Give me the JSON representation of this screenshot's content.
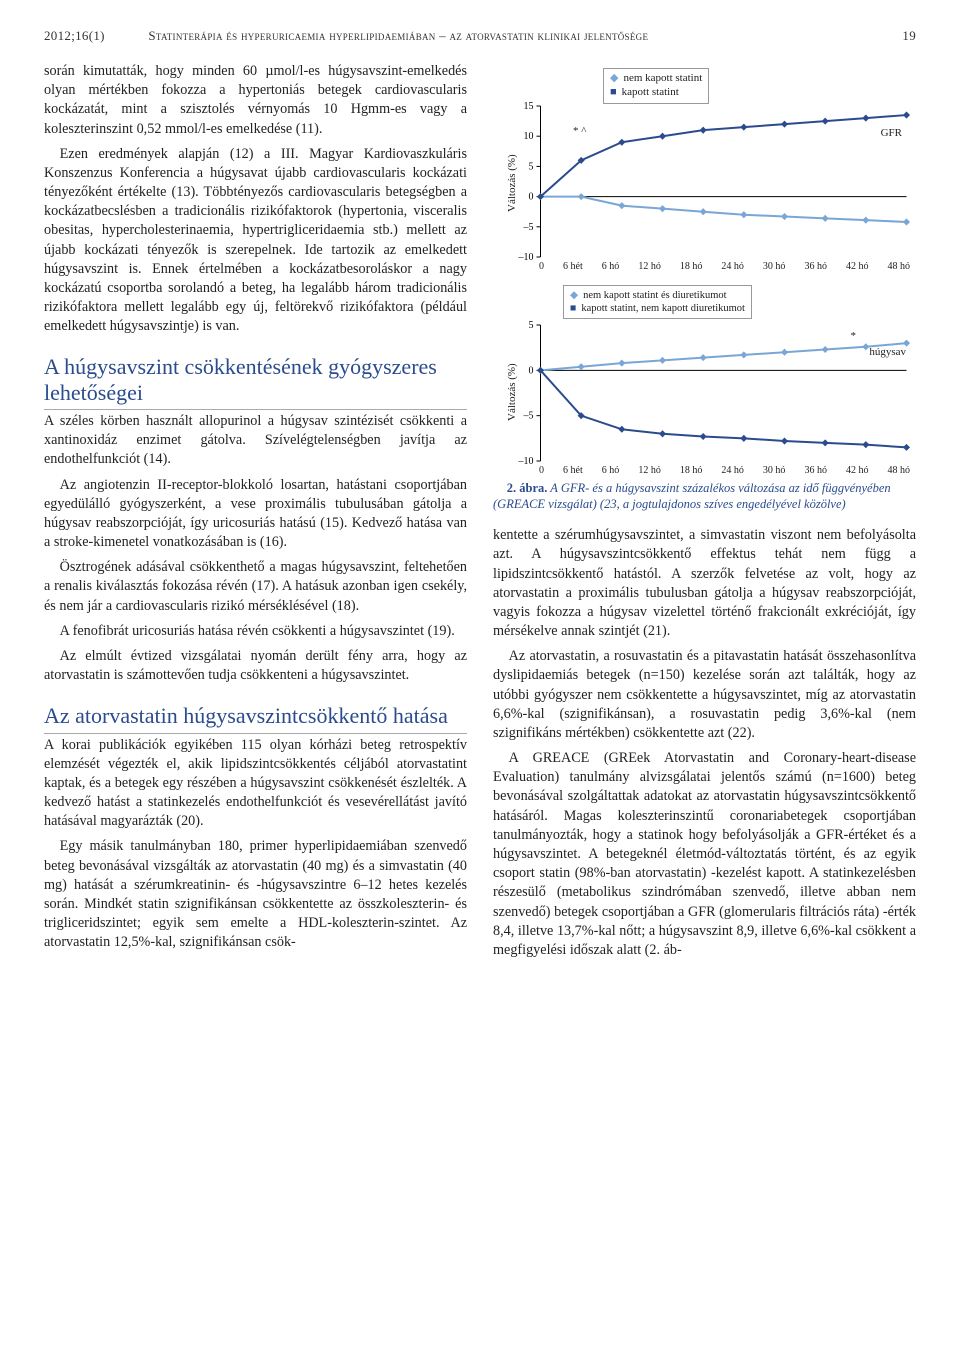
{
  "header": {
    "issue": "2012;16(1)",
    "running_title": "Statinterápia és hyperuricaemia hyperlipidaemiában – az atorvastatin klinikai jelentősége",
    "page_number": "19"
  },
  "body": {
    "para1": "során kimutatták, hogy minden 60 µmol/l-es húgysav­szint-emelkedés olyan mértékben fokozza a hypertoniás betegek cardiovascularis kockázatát, mint a szisztolés vérnyomás 10 Hgmm-es vagy a koleszterinszint 0,52 mmol/l-es emelkedése (11).",
    "para2": "Ezen eredmények alapján (12) a III. Magyar Kardiovaszkuláris Konszenzus Konferencia a húgysavat újabb cardio­vascularis kockázati tényezőként értékelte (13). Többtényezős cardiovascularis betegségben a kockázatbecslésben a tradicionális rizikófaktorok (hypertonia, visceralis obesitas, hypercholesterinaemia, hypertrigliceridaemia stb.) mellett az újabb kockázati tényezők is szerepelnek. Ide tartozik az emelkedett húgysavszint is. Ennek értelmében a kockázatbesoroláskor a nagy kockázatú csoportba sorolandó a beteg, ha legalább három tradicionális rizikófaktora mellett legalább egy új, feltörekvő rizikófaktora (például emelkedett húgysavszintje) is van.",
    "h2a": "A húgysavszint csökkentésének gyógyszeres lehetőségei",
    "para3": "A széles körben használt allopurinol a húgysav szintézisét csökkenti a xantinoxidáz enzimet gátolva. Szívelégtelenségben javítja az endothelfunkciót (14).",
    "para4": "Az angiotenzin II-receptor-blokkoló losartan, hatástani csoportjában egyedülálló gyógyszerként, a vese proximális tubulusában gátolja a húgysav reabszorpcióját, így uricosuriás hatású (15). Kedvező hatása van a stroke-kimenetel vonatkozásában is (16).",
    "para5": "Ösztrogének adásával csökkenthető a magas húgysav­szint, feltehetően a renalis kiválasztás fokozása révén (17). A hatásuk azonban igen csekély, és nem jár a cardiovascularis rizikó mérséklésével (18).",
    "para6": "A fenofibrát uricosuriás hatása révén csökkenti a húgysavszintet (19).",
    "para7": "Az elmúlt évtized vizsgálatai nyomán derült fény arra, hogy az atorvastatin is számottevően tudja csökkenteni a húgysavszintet.",
    "h2b": "Az atorvastatin húgysavszint­csökkentő hatása",
    "para8": "A korai publikációk egyikében 115 olyan kórházi beteg retrospektív elemzését végezték el, akik lipidszintcsökkentés céljából atorvastatint kaptak, és a betegek egy részében a húgysavszint csökkenését észlelték. A kedvező hatást a statinkezelés endothelfunkciót és vesevérellátást javító hatásával magyarázták (20).",
    "para9": "Egy másik tanulmányban 180, primer hyperlipidaemiában szenvedő beteg bevonásával vizsgálták az atorvastatin (40 mg) és a simvastatin (40 mg) hatását a szérumkreatinin- és -húgysavszintre 6–12 hetes kezelés során. Mindkét statin szignifikánsan csökkentette az összkoleszterin- és trigliceridszintet; egyik sem emelte a HDL-koleszterin-szintet. Az atorvastatin 12,5%-kal, szignifikánsan csök-",
    "para10": "kentette a szérumhúgysavszintet, a simvastatin viszont nem befolyásolta azt. A húgysavszintcsökkentő effektus tehát nem függ a lipidszintcsökkentő hatástól. A szerzők felvetése az volt, hogy az atorvastatin a proximális tubulusban gátolja a húgysav reabszorpcióját, vagyis fokozza a húgysav vizelettel történő frakcionált exkrécióját, így mérsékelve annak szintjét (21).",
    "para11": "Az atorvastatin, a rosuvastatin és a pitavastatin hatását összehasonlítva dyslipidaemiás betegek (n=150) kezelése során azt találták, hogy az utóbbi gyógyszer nem csökkentette a húgysavszintet, míg az atorvastatin 6,6%-kal (szignifikánsan), a rosuvastatin pedig 3,6%-kal (nem szignifikáns mértékben) csökkentette azt (22).",
    "para12": "A GREACE (GREek Atorvastatin and Coronary-heart-disease Evaluation) tanulmány alvizsgálatai jelentős számú (n=1600) beteg bevonásával szolgáltattak adatokat az atorvastatin húgysavszintcsökkentő hatásáról. Magas koleszterinszintű coronariabetegek csoportjában tanulmányozták, hogy a statinok hogy befolyásolják a GFR-értéket és a húgysavszintet. A betegeknél életmód-változtatás történt, és az egyik csoport statin (98%-ban atorvastatin) -kezelést kapott. A statinkezelésben részesülő (metabolikus szindrómában szenvedő, illetve abban nem szenvedő) betegek csoportjában a GFR (glomerularis filtrációs ráta) -érték 8,4, illetve 13,7%-kal nőtt; a húgysavszint 8,9, illetve 6,6%-kal csökkent a megfigyelési időszak alatt (2. áb-"
  },
  "figure": {
    "caption_lead": "2. ábra.",
    "caption": "A GFR- és a húgysavszint százalékos változása az idő függvényében (GREACE vizsgálat) (23, a jogtulajdonos szíves engedélyével közölve)",
    "y_axis_label": "Változás (%)",
    "top_chart": {
      "legend": [
        "nem kapott statint",
        "kapott statint"
      ],
      "series_colors": [
        "#7aa6d6",
        "#2a4b8d"
      ],
      "ylim": [
        -10,
        15
      ],
      "ytick_step": 5,
      "yticks": [
        "15",
        "10",
        "5",
        "0",
        "–5",
        "–10"
      ],
      "annotation_left": "* ^",
      "annotation_right": "GFR",
      "xticks": [
        "0",
        "6 hét",
        "6 hó",
        "12 hó",
        "18 hó",
        "24 hó",
        "30 hó",
        "36 hó",
        "42 hó",
        "48 hó"
      ],
      "statin": [
        0,
        6,
        9,
        10,
        11,
        11.5,
        12,
        12.5,
        13,
        13.5
      ],
      "no_statin": [
        0,
        0,
        -1.5,
        -2,
        -2.5,
        -3,
        -3.3,
        -3.6,
        -3.9,
        -4.2
      ],
      "line_width": 2,
      "marker": "diamond"
    },
    "bottom_chart": {
      "legend": [
        "nem kapott statint és diuretikumot",
        "kapott statint, nem kapott diuretikumot"
      ],
      "series_colors": [
        "#7aa6d6",
        "#2a4b8d"
      ],
      "ylim": [
        -10,
        5
      ],
      "ytick_step": 5,
      "yticks": [
        "5",
        "0",
        "–5",
        "–10"
      ],
      "annotation_right_top": "*",
      "annotation_right": "húgysav",
      "xticks": [
        "0",
        "6 hét",
        "6 hó",
        "12 hó",
        "18 hó",
        "24 hó",
        "30 hó",
        "36 hó",
        "42 hó",
        "48 hó"
      ],
      "statin": [
        0,
        -5,
        -6.5,
        -7,
        -7.3,
        -7.5,
        -7.8,
        -8,
        -8.2,
        -8.5
      ],
      "no_statin": [
        0,
        0.4,
        0.8,
        1.1,
        1.4,
        1.7,
        2,
        2.3,
        2.6,
        3
      ],
      "line_width": 2,
      "marker": "square"
    },
    "background_color": "#ffffff",
    "axis_color": "#000000",
    "tick_font_size": 10
  }
}
